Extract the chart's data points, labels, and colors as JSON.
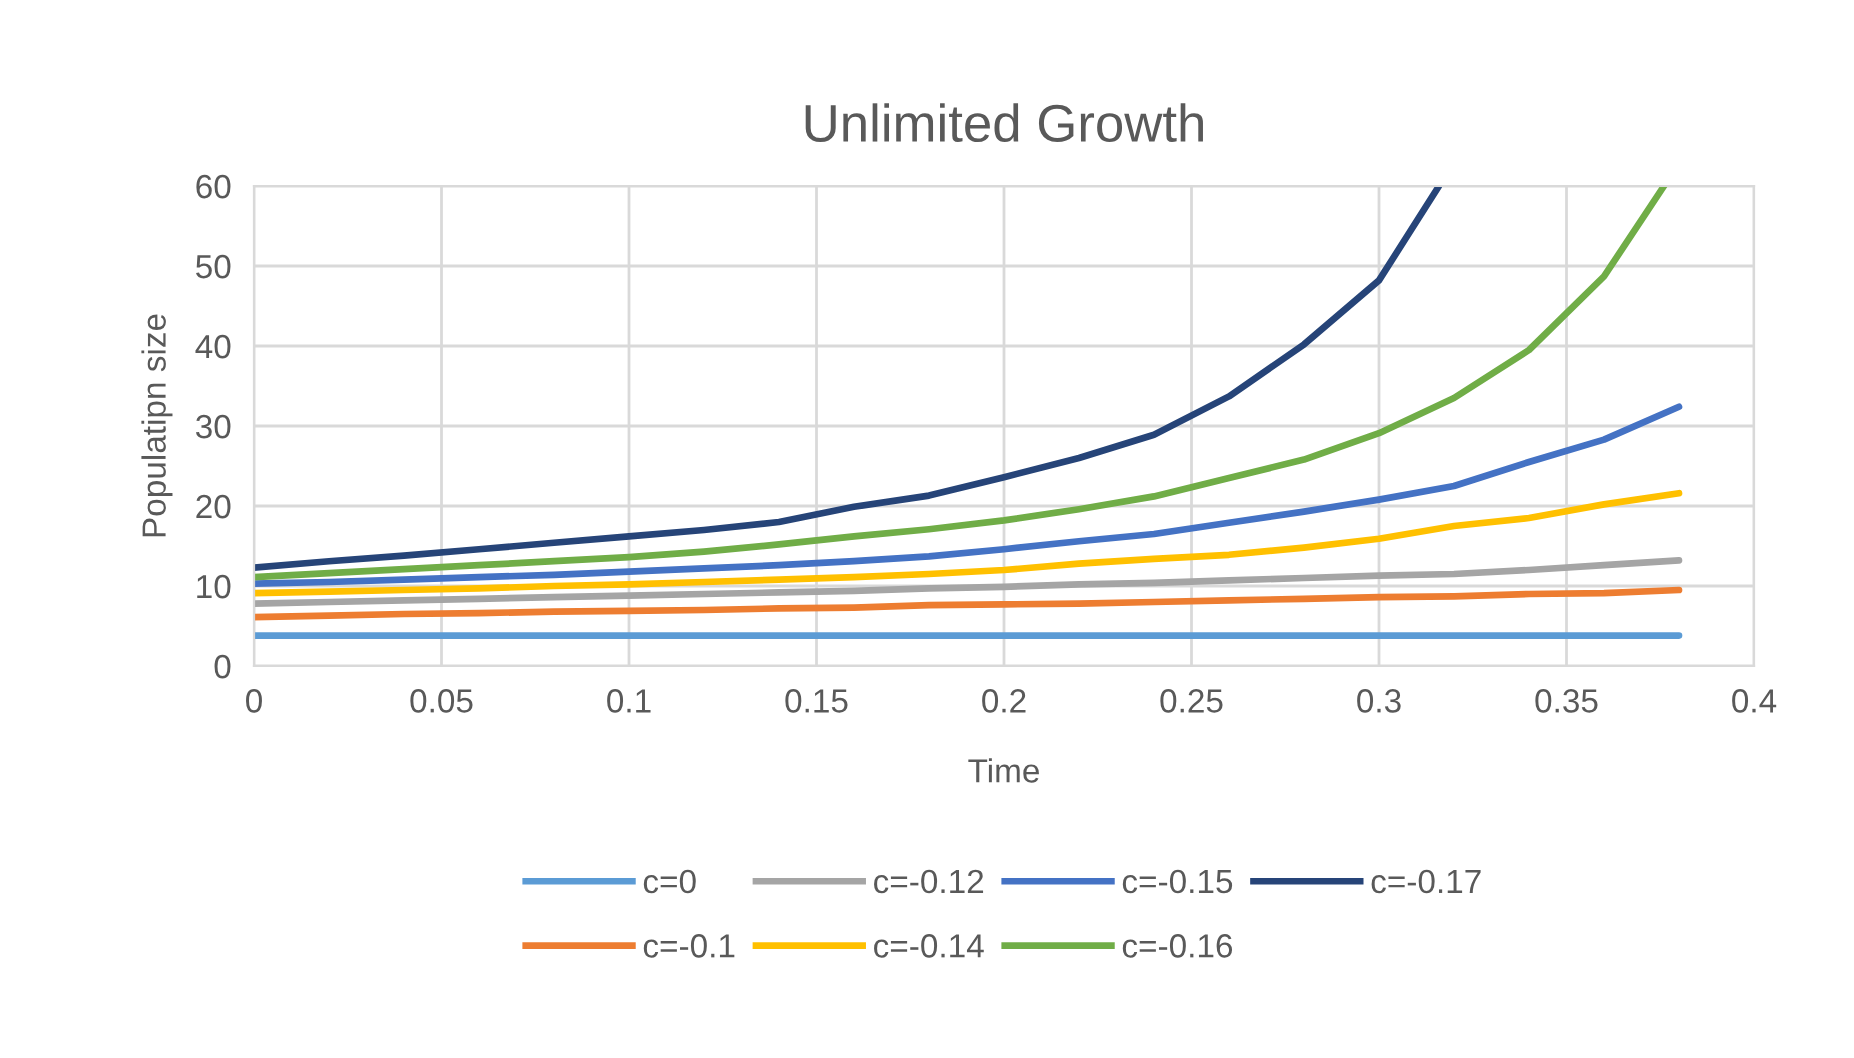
{
  "chart_data": {
    "type": "line",
    "title": "Unlimited Growth",
    "xlabel": "Time",
    "ylabel": "Populatipn size",
    "x": [
      0,
      0.02,
      0.04,
      0.06,
      0.08,
      0.1,
      0.12,
      0.14,
      0.16,
      0.18,
      0.2,
      0.22,
      0.24,
      0.26,
      0.28,
      0.3,
      0.32,
      0.34,
      0.36,
      0.38
    ],
    "xlim": [
      0,
      0.4
    ],
    "xticks": [
      0,
      0.05,
      0.1,
      0.15,
      0.2,
      0.25,
      0.3,
      0.35,
      0.4
    ],
    "ylim": [
      0,
      60
    ],
    "yticks": [
      0,
      10,
      20,
      30,
      40,
      50,
      60
    ],
    "grid": true,
    "legend": "bottom",
    "marker": "none",
    "line_style": "solid",
    "series": [
      {
        "name": "c=0",
        "color": "#5b9bd5",
        "values": [
          3.8,
          3.8,
          3.8,
          3.8,
          3.8,
          3.8,
          3.8,
          3.8,
          3.8,
          3.8,
          3.8,
          3.8,
          3.8,
          3.8,
          3.8,
          3.8,
          3.8,
          3.8,
          3.8,
          3.8
        ]
      },
      {
        "name": "c=-0.1",
        "color": "#ed7d31",
        "values": [
          6.1,
          6.3,
          6.5,
          6.6,
          6.8,
          6.9,
          7.0,
          7.2,
          7.3,
          7.6,
          7.7,
          7.8,
          8.0,
          8.2,
          8.4,
          8.6,
          8.7,
          9.0,
          9.1,
          9.5
        ]
      },
      {
        "name": "c=-0.12",
        "color": "#a5a5a5",
        "values": [
          7.8,
          8.0,
          8.2,
          8.4,
          8.6,
          8.8,
          9.0,
          9.2,
          9.4,
          9.7,
          9.9,
          10.2,
          10.4,
          10.7,
          11.0,
          11.3,
          11.5,
          12.0,
          12.6,
          13.2
        ]
      },
      {
        "name": "c=-0.14",
        "color": "#ffc000",
        "values": [
          9.1,
          9.3,
          9.5,
          9.7,
          10.0,
          10.2,
          10.5,
          10.8,
          11.1,
          11.5,
          12.0,
          12.8,
          13.4,
          13.9,
          14.8,
          15.9,
          17.5,
          18.5,
          20.2,
          21.6
        ]
      },
      {
        "name": "c=-0.15",
        "color": "#4472c4",
        "values": [
          10.3,
          10.5,
          10.8,
          11.1,
          11.4,
          11.8,
          12.2,
          12.6,
          13.1,
          13.7,
          14.6,
          15.6,
          16.5,
          17.9,
          19.3,
          20.8,
          22.5,
          25.5,
          28.3,
          32.4
        ]
      },
      {
        "name": "c=-0.16",
        "color": "#70ad47",
        "x": [
          0,
          0.02,
          0.04,
          0.06,
          0.08,
          0.1,
          0.12,
          0.14,
          0.16,
          0.18,
          0.2,
          0.22,
          0.24,
          0.26,
          0.28,
          0.3,
          0.32,
          0.34,
          0.36,
          0.376
        ],
        "values": [
          11.1,
          11.6,
          12.1,
          12.6,
          13.1,
          13.6,
          14.3,
          15.2,
          16.2,
          17.1,
          18.2,
          19.6,
          21.2,
          23.5,
          25.8,
          29.1,
          33.5,
          39.5,
          48.7,
          60
        ]
      },
      {
        "name": "c=-0.17",
        "color": "#264478",
        "x": [
          0,
          0.02,
          0.04,
          0.06,
          0.08,
          0.1,
          0.12,
          0.14,
          0.16,
          0.18,
          0.2,
          0.22,
          0.24,
          0.26,
          0.28,
          0.3,
          0.316
        ],
        "values": [
          12.3,
          13.1,
          13.8,
          14.6,
          15.4,
          16.2,
          17.0,
          18.0,
          19.9,
          21.3,
          23.6,
          26.0,
          28.9,
          33.7,
          40.2,
          48.2,
          60
        ]
      }
    ]
  }
}
